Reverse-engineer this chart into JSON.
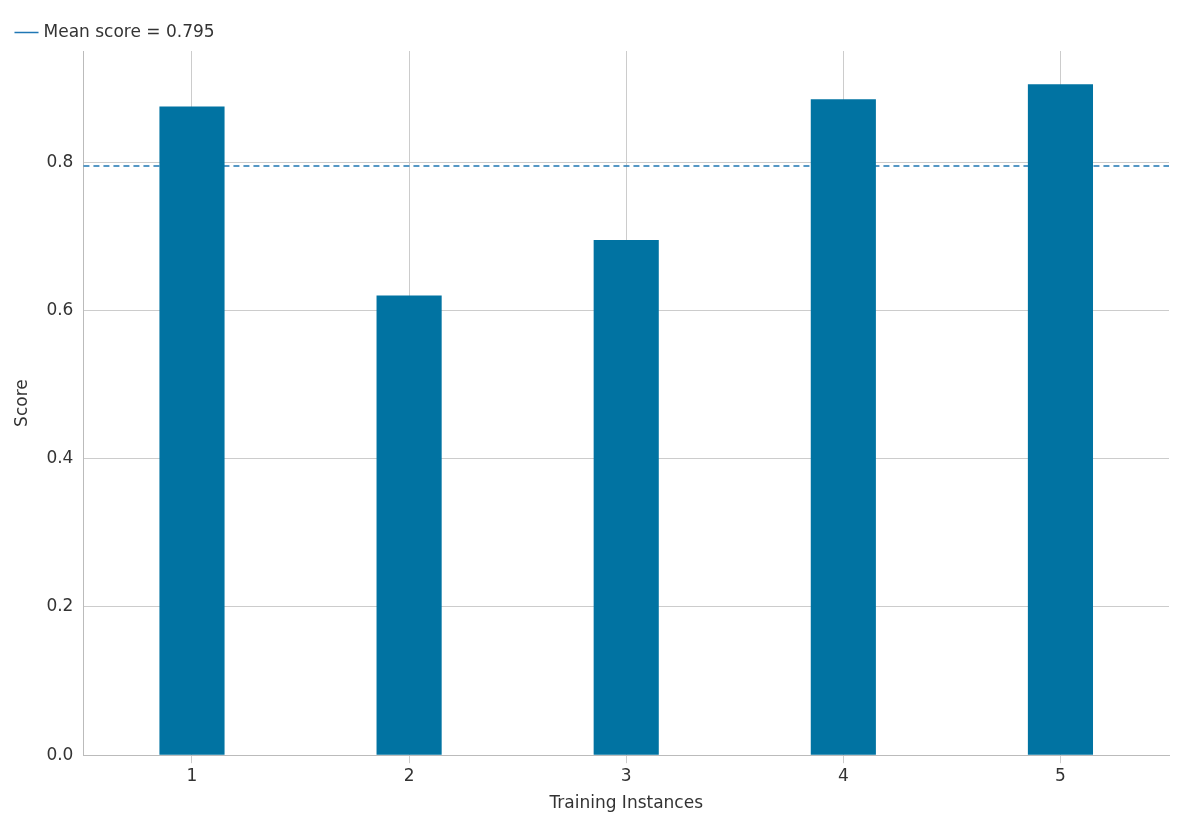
{
  "chart_data": {
    "type": "bar",
    "xlabel": "Training Instances",
    "ylabel": "Score",
    "categories": [
      "1",
      "2",
      "3",
      "4",
      "5"
    ],
    "values": [
      0.875,
      0.62,
      0.695,
      0.885,
      0.905
    ],
    "color": "#0173a2",
    "ylim": [
      0,
      0.95
    ],
    "yticks": [
      {
        "value": 0,
        "label": "0.0"
      },
      0.2,
      0.4,
      0.6,
      0.8
    ],
    "ref_lines": [
      {
        "axis": "y",
        "value": 0.795,
        "label": "Mean score = 0.795",
        "color": "#1f77b4",
        "line_style": "dashed"
      }
    ],
    "grid": true,
    "legend": "top left"
  }
}
